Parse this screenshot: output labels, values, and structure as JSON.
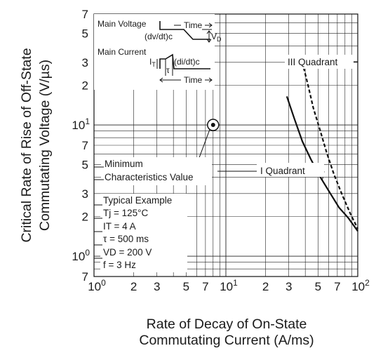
{
  "chart_data": {
    "type": "line",
    "title": "",
    "xlabel": [
      "Rate of Decay of On-State",
      "Commutating Current  (A/ms)"
    ],
    "ylabel": [
      "Critical Rate of Rise of Off-State",
      "Commutating Voltage  (V/µs)"
    ],
    "xscale": "log",
    "yscale": "log",
    "xlim": [
      1,
      100
    ],
    "ylim": [
      0.7,
      70
    ],
    "x_ticks": [
      {
        "v": 1,
        "base": "10",
        "sup": "0"
      },
      {
        "v": 2,
        "base": "2"
      },
      {
        "v": 3,
        "base": "3"
      },
      {
        "v": 5,
        "base": "5"
      },
      {
        "v": 7,
        "base": "7"
      },
      {
        "v": 10,
        "base": "10",
        "sup": "1"
      },
      {
        "v": 20,
        "base": "2"
      },
      {
        "v": 30,
        "base": "3"
      },
      {
        "v": 50,
        "base": "5"
      },
      {
        "v": 70,
        "base": "7"
      },
      {
        "v": 100,
        "base": "10",
        "sup": "2"
      }
    ],
    "y_ticks": [
      {
        "v": 0.7,
        "base": "7"
      },
      {
        "v": 1,
        "base": "10",
        "sup": "0"
      },
      {
        "v": 2,
        "base": "2"
      },
      {
        "v": 3,
        "base": "3"
      },
      {
        "v": 5,
        "base": "5"
      },
      {
        "v": 7,
        "base": "7"
      },
      {
        "v": 10,
        "base": "10",
        "sup": "1"
      },
      {
        "v": 20,
        "base": "2"
      },
      {
        "v": 30,
        "base": "3"
      },
      {
        "v": 50,
        "base": "5"
      },
      {
        "v": 70,
        "base": "7"
      }
    ],
    "series": [
      {
        "name": "I Quadrant",
        "style": "solid",
        "points": [
          [
            29,
            16.5
          ],
          [
            33,
            11.2
          ],
          [
            38,
            7.5
          ],
          [
            44,
            5.5
          ],
          [
            52,
            4.0
          ],
          [
            62,
            3.0
          ],
          [
            72,
            2.35
          ],
          [
            85,
            1.95
          ],
          [
            100,
            1.55
          ]
        ]
      },
      {
        "name": "III Quadrant",
        "style": "dashed",
        "points": [
          [
            38,
            30
          ],
          [
            42,
            20
          ],
          [
            46,
            13.5
          ],
          [
            52,
            9.0
          ],
          [
            58,
            6.2
          ],
          [
            66,
            4.2
          ],
          [
            76,
            2.95
          ],
          [
            88,
            2.1
          ],
          [
            100,
            1.62
          ]
        ]
      }
    ],
    "marker": {
      "label": [
        "Minimum",
        "Characteristics Value"
      ],
      "x": 8,
      "y": 10
    },
    "annotations": {
      "typical_example": [
        "Typical Example",
        "Tj = 125°C",
        "IT = 4 A",
        "τ = 500 ms",
        "VD = 200 V",
        "f = 3 Hz"
      ]
    },
    "inset": {
      "main_voltage": "Main Voltage",
      "main_current": "Main Current",
      "dvdt": "(dv/dt)c",
      "didt": "(di/dt)c",
      "time": "Time",
      "vd": "VD",
      "it": "IT",
      "tau": "τ"
    }
  }
}
